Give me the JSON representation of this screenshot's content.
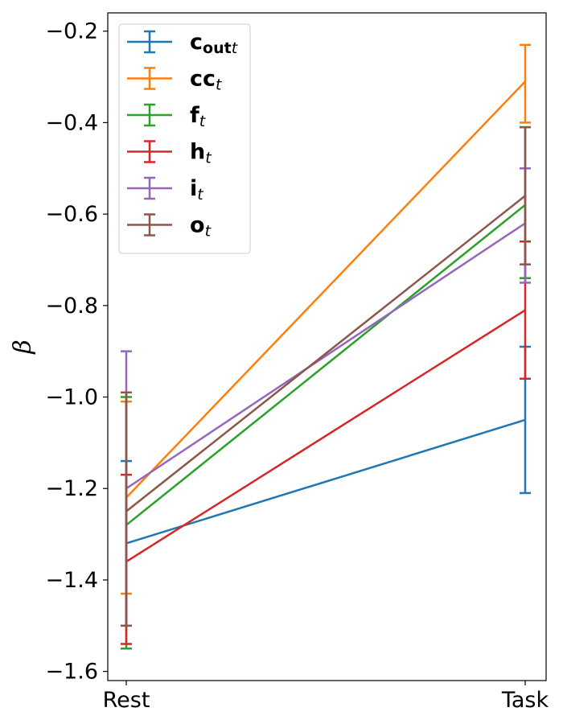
{
  "chart_data": {
    "type": "line",
    "categories": [
      "Rest",
      "Task"
    ],
    "ylabel": "β",
    "ylim": [
      -1.62,
      -0.16
    ],
    "yticks": [
      -1.6,
      -1.4,
      -1.2,
      -1.0,
      -0.8,
      -0.6,
      -0.4,
      -0.2
    ],
    "ytick_labels": [
      "−1.6",
      "−1.4",
      "−1.2",
      "−1.0",
      "−0.8",
      "−0.6",
      "−0.4",
      "−0.2"
    ],
    "grid": false,
    "legend_position": "top-left",
    "series": [
      {
        "name": "c_out t",
        "label_main": "c",
        "label_sub": "out",
        "label_tail": "t",
        "color": "#1f77b4",
        "values": [
          -1.32,
          -1.05
        ],
        "err_low": [
          -1.5,
          -1.21
        ],
        "err_high": [
          -1.14,
          -0.89
        ]
      },
      {
        "name": "cc t",
        "label_main": "cc",
        "label_sub": "",
        "label_tail": "t",
        "color": "#ff7f0e",
        "values": [
          -1.22,
          -0.31
        ],
        "err_low": [
          -1.43,
          -0.4
        ],
        "err_high": [
          -1.01,
          -0.23
        ]
      },
      {
        "name": "f t",
        "label_main": "f",
        "label_sub": "",
        "label_tail": "t",
        "color": "#2ca02c",
        "values": [
          -1.28,
          -0.58
        ],
        "err_low": [
          -1.55,
          -0.74
        ],
        "err_high": [
          -1.0,
          -0.41
        ]
      },
      {
        "name": "h t",
        "label_main": "h",
        "label_sub": "",
        "label_tail": "t",
        "color": "#d62728",
        "values": [
          -1.36,
          -0.81
        ],
        "err_low": [
          -1.54,
          -0.96
        ],
        "err_high": [
          -1.17,
          -0.66
        ]
      },
      {
        "name": "i t",
        "label_main": "i",
        "label_sub": "",
        "label_tail": "t",
        "color": "#9467bd",
        "values": [
          -1.2,
          -0.62
        ],
        "err_low": [
          -1.5,
          -0.75
        ],
        "err_high": [
          -0.9,
          -0.5
        ]
      },
      {
        "name": "o t",
        "label_main": "o",
        "label_sub": "",
        "label_tail": "t",
        "color": "#8c564b",
        "values": [
          -1.25,
          -0.56
        ],
        "err_low": [
          -1.5,
          -0.71
        ],
        "err_high": [
          -0.99,
          -0.41
        ]
      }
    ]
  }
}
